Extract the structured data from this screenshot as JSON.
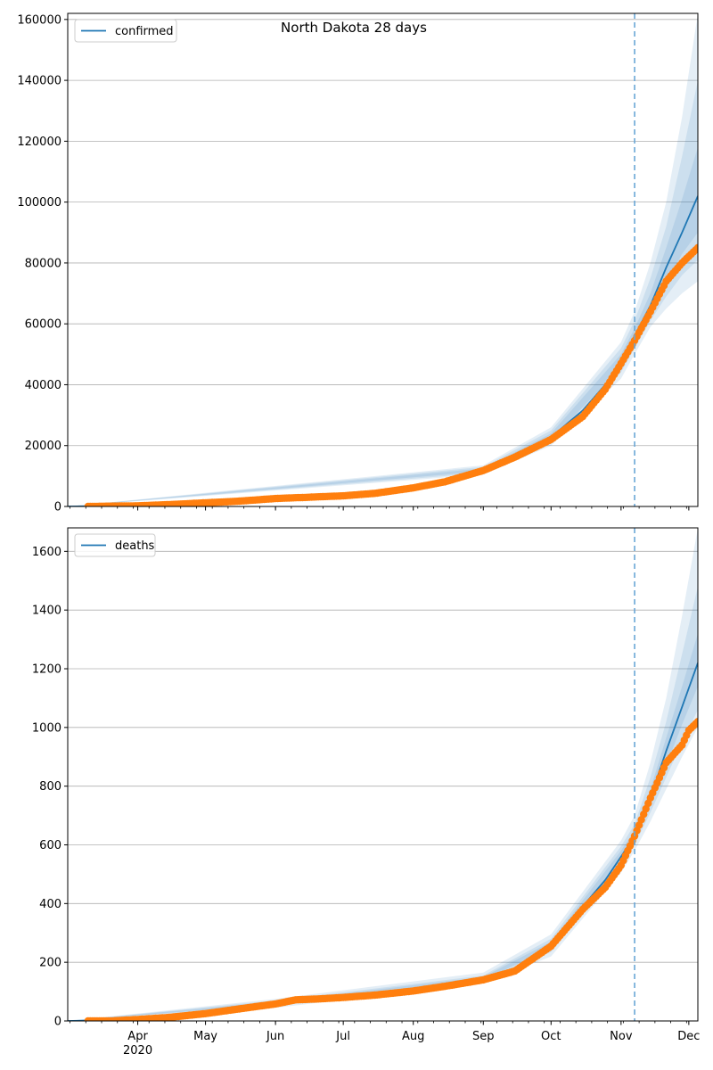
{
  "figure": {
    "title": "North Dakota 28 days"
  },
  "colors": {
    "model_line": "#1f77b4",
    "observed_points": "#ff7f0e",
    "band": "#1f77b4",
    "forecast_marker": "#6aa6d6",
    "grid": "#b0b0b0"
  },
  "chart_data": [
    {
      "type": "line",
      "panel": "top",
      "legend": [
        "confirmed"
      ],
      "legend_position": "upper-left",
      "grid": "horizontal",
      "ylim": [
        0,
        162000
      ],
      "yticks": [
        0,
        20000,
        40000,
        60000,
        80000,
        100000,
        120000,
        140000,
        160000
      ],
      "xlim": [
        "2020-03-01",
        "2020-12-05"
      ],
      "x_tick_labels": [
        {
          "date": "2020-04-01",
          "label": "Apr",
          "sublabel": "2020"
        },
        {
          "date": "2020-05-01",
          "label": "May"
        },
        {
          "date": "2020-06-01",
          "label": "Jun"
        },
        {
          "date": "2020-07-01",
          "label": "Jul"
        },
        {
          "date": "2020-08-01",
          "label": "Aug"
        },
        {
          "date": "2020-09-01",
          "label": "Sep"
        },
        {
          "date": "2020-10-01",
          "label": "Oct"
        },
        {
          "date": "2020-11-01",
          "label": "Nov"
        },
        {
          "date": "2020-12-01",
          "label": "Dec"
        }
      ],
      "forecast_start": "2020-11-07",
      "series": [
        {
          "name": "confirmed",
          "role": "model",
          "x": [
            "2020-03-01",
            "2020-04-01",
            "2020-05-01",
            "2020-06-01",
            "2020-07-01",
            "2020-07-15",
            "2020-08-01",
            "2020-08-15",
            "2020-09-01",
            "2020-09-15",
            "2020-10-01",
            "2020-10-15",
            "2020-10-25",
            "2020-11-01",
            "2020-11-07",
            "2020-11-14",
            "2020-11-21",
            "2020-11-28",
            "2020-12-05"
          ],
          "values": [
            0,
            300,
            1300,
            2700,
            3600,
            4300,
            6200,
            8200,
            12000,
            16500,
            22800,
            31500,
            40000,
            47500,
            56000,
            66000,
            78500,
            90000,
            102000
          ]
        },
        {
          "name": "observed",
          "role": "points",
          "x": [
            "2020-03-10",
            "2020-03-20",
            "2020-04-01",
            "2020-04-15",
            "2020-05-01",
            "2020-05-15",
            "2020-06-01",
            "2020-06-15",
            "2020-07-01",
            "2020-07-15",
            "2020-08-01",
            "2020-08-15",
            "2020-09-01",
            "2020-09-15",
            "2020-10-01",
            "2020-10-15",
            "2020-10-25",
            "2020-11-01",
            "2020-11-07",
            "2020-11-14",
            "2020-11-21",
            "2020-11-28",
            "2020-12-05"
          ],
          "values": [
            0,
            100,
            200,
            600,
            1200,
            1700,
            2600,
            3000,
            3500,
            4300,
            6100,
            8100,
            11800,
            16200,
            22000,
            29500,
            38500,
            47000,
            54500,
            64000,
            74000,
            80000,
            85000
          ]
        }
      ],
      "bands": [
        {
          "x": [
            "2020-03-01",
            "2020-09-01",
            "2020-10-01",
            "2020-11-01",
            "2020-11-07",
            "2020-11-14",
            "2020-11-21",
            "2020-11-28",
            "2020-12-05"
          ],
          "lower": [
            0,
            10500,
            20000,
            42000,
            50000,
            59000,
            65000,
            70000,
            74000
          ],
          "upper": [
            0,
            13500,
            26000,
            54000,
            64000,
            80000,
            100000,
            128000,
            162000
          ]
        },
        {
          "x": [
            "2020-03-01",
            "2020-09-01",
            "2020-10-01",
            "2020-11-01",
            "2020-11-07",
            "2020-11-14",
            "2020-11-21",
            "2020-11-28",
            "2020-12-05"
          ],
          "lower": [
            0,
            11000,
            21000,
            44000,
            52000,
            61000,
            69000,
            76000,
            81000
          ],
          "upper": [
            0,
            13000,
            25000,
            52000,
            61000,
            75000,
            92000,
            115000,
            140000
          ]
        },
        {
          "x": [
            "2020-03-01",
            "2020-09-01",
            "2020-10-01",
            "2020-11-01",
            "2020-11-07",
            "2020-11-14",
            "2020-11-21",
            "2020-11-28",
            "2020-12-05"
          ],
          "lower": [
            0,
            11500,
            22000,
            45500,
            54000,
            63000,
            73000,
            83000,
            90000
          ],
          "upper": [
            0,
            12500,
            24000,
            50000,
            58500,
            70000,
            85000,
            101000,
            118000
          ]
        }
      ]
    },
    {
      "type": "line",
      "panel": "bottom",
      "legend": [
        "deaths"
      ],
      "legend_position": "upper-left",
      "grid": "horizontal",
      "ylim": [
        0,
        1680
      ],
      "yticks": [
        0,
        200,
        400,
        600,
        800,
        1000,
        1200,
        1400,
        1600
      ],
      "xlim": [
        "2020-03-01",
        "2020-12-05"
      ],
      "x_tick_labels": [
        {
          "date": "2020-04-01",
          "label": "Apr",
          "sublabel": "2020"
        },
        {
          "date": "2020-05-01",
          "label": "May"
        },
        {
          "date": "2020-06-01",
          "label": "Jun"
        },
        {
          "date": "2020-07-01",
          "label": "Jul"
        },
        {
          "date": "2020-08-01",
          "label": "Aug"
        },
        {
          "date": "2020-09-01",
          "label": "Sep"
        },
        {
          "date": "2020-10-01",
          "label": "Oct"
        },
        {
          "date": "2020-11-01",
          "label": "Nov"
        },
        {
          "date": "2020-12-01",
          "label": "Dec"
        }
      ],
      "forecast_start": "2020-11-07",
      "series": [
        {
          "name": "deaths",
          "role": "model",
          "x": [
            "2020-03-01",
            "2020-04-01",
            "2020-05-01",
            "2020-06-01",
            "2020-06-15",
            "2020-07-01",
            "2020-08-01",
            "2020-08-15",
            "2020-09-01",
            "2020-09-15",
            "2020-10-01",
            "2020-10-15",
            "2020-10-25",
            "2020-11-01",
            "2020-11-07",
            "2020-11-14",
            "2020-11-21",
            "2020-11-28",
            "2020-12-05"
          ],
          "values": [
            0,
            5,
            25,
            62,
            78,
            82,
            102,
            120,
            145,
            178,
            260,
            390,
            480,
            560,
            630,
            760,
            920,
            1070,
            1220
          ]
        },
        {
          "name": "observed",
          "role": "points",
          "x": [
            "2020-03-10",
            "2020-03-20",
            "2020-04-01",
            "2020-04-15",
            "2020-05-01",
            "2020-05-15",
            "2020-06-01",
            "2020-06-10",
            "2020-06-20",
            "2020-07-01",
            "2020-07-15",
            "2020-08-01",
            "2020-08-15",
            "2020-09-01",
            "2020-09-15",
            "2020-10-01",
            "2020-10-15",
            "2020-10-25",
            "2020-11-01",
            "2020-11-07",
            "2020-11-14",
            "2020-11-21",
            "2020-11-28",
            "2020-12-01",
            "2020-12-05"
          ],
          "values": [
            0,
            0,
            5,
            12,
            25,
            40,
            58,
            72,
            75,
            80,
            88,
            102,
            118,
            140,
            170,
            255,
            380,
            455,
            530,
            630,
            760,
            880,
            940,
            990,
            1020
          ]
        }
      ],
      "bands": [
        {
          "x": [
            "2020-03-01",
            "2020-06-01",
            "2020-09-01",
            "2020-10-01",
            "2020-11-01",
            "2020-11-07",
            "2020-11-14",
            "2020-11-21",
            "2020-11-28",
            "2020-12-05"
          ],
          "lower": [
            0,
            45,
            128,
            220,
            505,
            580,
            680,
            790,
            900,
            1000
          ],
          "upper": [
            0,
            75,
            165,
            295,
            615,
            700,
            880,
            1100,
            1380,
            1680
          ]
        },
        {
          "x": [
            "2020-03-01",
            "2020-06-01",
            "2020-09-01",
            "2020-10-01",
            "2020-11-01",
            "2020-11-07",
            "2020-11-14",
            "2020-11-21",
            "2020-11-28",
            "2020-12-05"
          ],
          "lower": [
            0,
            52,
            135,
            235,
            525,
            600,
            710,
            830,
            950,
            1060
          ],
          "upper": [
            0,
            70,
            155,
            280,
            595,
            670,
            830,
            1020,
            1250,
            1480
          ]
        },
        {
          "x": [
            "2020-03-01",
            "2020-06-01",
            "2020-09-01",
            "2020-10-01",
            "2020-11-01",
            "2020-11-07",
            "2020-11-14",
            "2020-11-21",
            "2020-11-28",
            "2020-12-05"
          ],
          "lower": [
            0,
            57,
            140,
            248,
            540,
            615,
            735,
            870,
            1010,
            1140
          ],
          "upper": [
            0,
            66,
            150,
            270,
            580,
            650,
            790,
            965,
            1140,
            1320
          ]
        }
      ]
    }
  ]
}
